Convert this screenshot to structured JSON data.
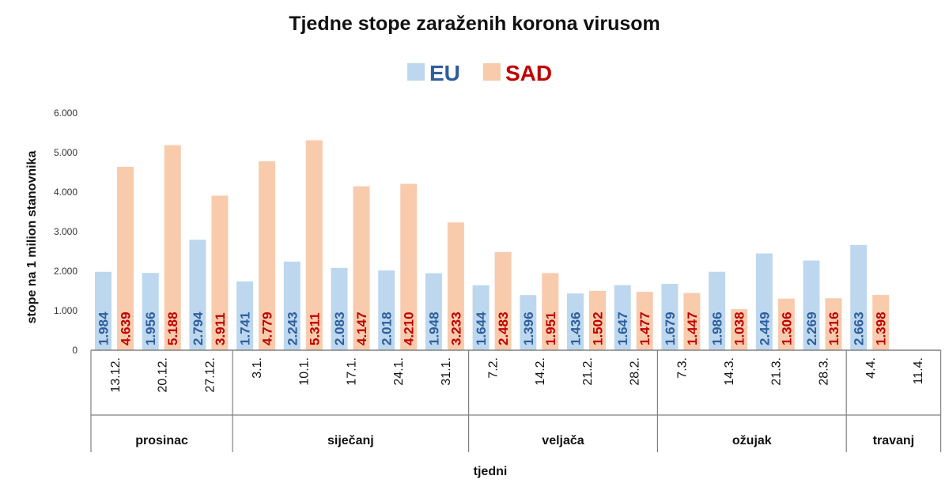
{
  "chart_data": {
    "type": "bar",
    "title": "Tjedne stope zaraženih korona virusom",
    "xlabel": "tjedni",
    "ylabel": "stope na 1 milion stanovnika",
    "ylim": [
      0,
      6000
    ],
    "yticks": [
      "0",
      "1.000",
      "2.000",
      "3.000",
      "4.000",
      "5.000",
      "6.000"
    ],
    "grid": false,
    "legend_position": "top-center",
    "categories": [
      "13.12.",
      "20.12.",
      "27.12.",
      "3.1.",
      "10.1.",
      "17.1.",
      "24.1.",
      "31.1.",
      "7.2.",
      "14.2.",
      "21.2.",
      "28.2.",
      "7.3.",
      "14.3.",
      "21.3.",
      "28.3.",
      "4.4.",
      "11.4."
    ],
    "groups": [
      {
        "label": "prosinac",
        "count": 3
      },
      {
        "label": "siječanj",
        "count": 5
      },
      {
        "label": "veljača",
        "count": 4
      },
      {
        "label": "ožujak",
        "count": 4
      },
      {
        "label": "travanj",
        "count": 2
      }
    ],
    "series": [
      {
        "name": "EU",
        "color": "#bdd7ee",
        "label_color": "#2e5e9e",
        "values": [
          1984,
          1956,
          2794,
          1741,
          2243,
          2083,
          2018,
          1948,
          1644,
          1396,
          1436,
          1647,
          1679,
          1986,
          2449,
          2269,
          2663,
          null
        ],
        "labels": [
          "1.984",
          "1.956",
          "2.794",
          "1.741",
          "2.243",
          "2.083",
          "2.018",
          "1.948",
          "1.644",
          "1.396",
          "1.436",
          "1.647",
          "1.679",
          "1.986",
          "2.449",
          "2.269",
          "2.663",
          null
        ]
      },
      {
        "name": "SAD",
        "color": "#f8cbad",
        "label_color": "#c00000",
        "values": [
          4639,
          5188,
          3911,
          4779,
          5311,
          4147,
          4210,
          3233,
          2483,
          1951,
          1502,
          1477,
          1447,
          1038,
          1306,
          1316,
          1398,
          null
        ],
        "labels": [
          "4.639",
          "5.188",
          "3.911",
          "4.779",
          "5.311",
          "4.147",
          "4.210",
          "3.233",
          "2.483",
          "1.951",
          "1.502",
          "1.477",
          "1.447",
          "1.038",
          "1.306",
          "1.316",
          "1.398",
          null
        ]
      }
    ]
  }
}
